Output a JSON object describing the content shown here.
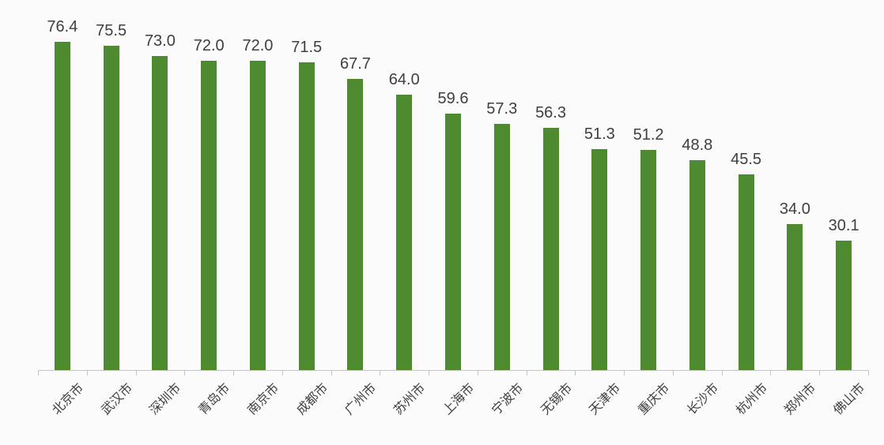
{
  "chart_data": {
    "type": "bar",
    "title": "",
    "xlabel": "",
    "ylabel": "",
    "categories": [
      "北京市",
      "武汉市",
      "深圳市",
      "青岛市",
      "南京市",
      "成都市",
      "广州市",
      "苏州市",
      "上海市",
      "宁波市",
      "无锡市",
      "天津市",
      "重庆市",
      "长沙市",
      "杭州市",
      "郑州市",
      "佛山市"
    ],
    "values": [
      76.4,
      75.5,
      73.0,
      72.0,
      72.0,
      71.5,
      67.7,
      64.0,
      59.6,
      57.3,
      56.3,
      51.3,
      51.2,
      48.8,
      45.5,
      34.0,
      30.1
    ],
    "value_labels": [
      "76.4",
      "75.5",
      "73.0",
      "72.0",
      "72.0",
      "71.5",
      "67.7",
      "64.0",
      "59.6",
      "57.3",
      "56.3",
      "51.3",
      "51.2",
      "48.8",
      "45.5",
      "34.0",
      "30.1"
    ],
    "ylim": [
      0,
      80
    ],
    "grid": false,
    "legend": "none",
    "value_labels_position": "above-bars",
    "x_tick_rotation_deg": 45,
    "colors": {
      "bar": "#4e8a2f",
      "value_label": "#3f3f3f",
      "axis_label": "#3f3f3f",
      "axis_line": "#c4c4c4",
      "background": "#fbfbfb"
    }
  }
}
